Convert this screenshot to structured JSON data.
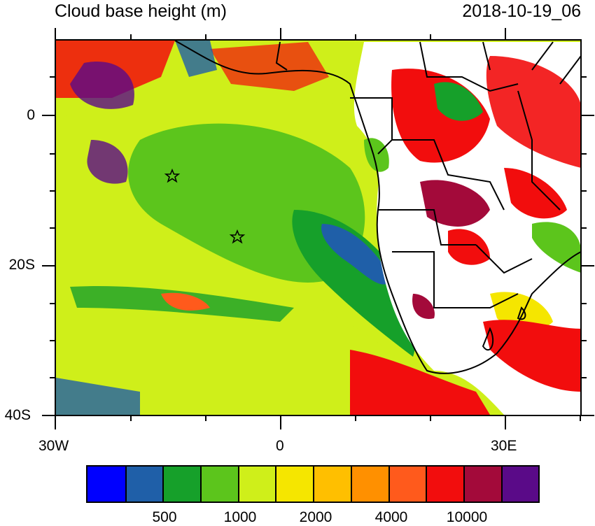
{
  "title": "Cloud base height (m)",
  "timestamp": "2018-10-19_06",
  "lat_labels": [
    "0",
    "20S",
    "40S"
  ],
  "lon_labels": [
    "30W",
    "0",
    "30E"
  ],
  "colorbar": {
    "colors": [
      "#0000ff",
      "#1f5fa8",
      "#16a02a",
      "#5cc51c",
      "#cfef1a",
      "#f5e600",
      "#ffbf00",
      "#ff9000",
      "#ff5a1c",
      "#f20d0d",
      "#a30a3a",
      "#5a0a88"
    ],
    "labels": [
      "500",
      "1000",
      "2000",
      "4000",
      "10000"
    ]
  },
  "markers": [
    {
      "name": "star-marker",
      "lon": -14.5,
      "lat": -8
    },
    {
      "name": "star-marker",
      "lon": -5.8,
      "lat": -16
    }
  ]
}
